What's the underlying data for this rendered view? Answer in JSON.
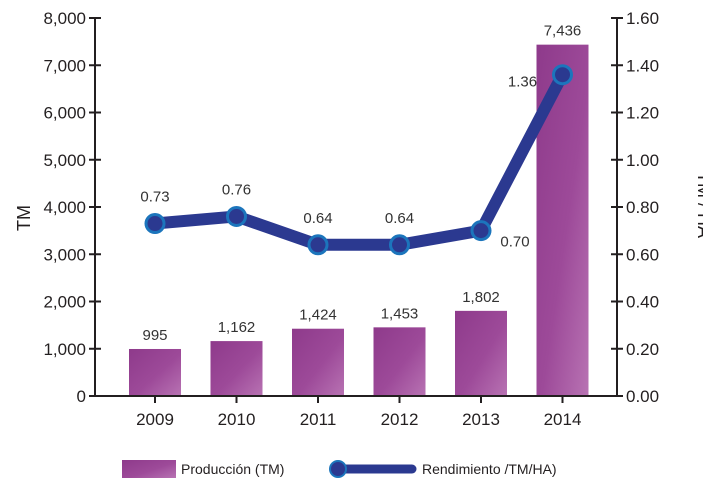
{
  "chart_data": {
    "type": "bar",
    "categories": [
      "2009",
      "2010",
      "2011",
      "2012",
      "2013",
      "2014"
    ],
    "series": [
      {
        "name": "Producción (TM)",
        "type": "bar",
        "axis": "left",
        "values": [
          995,
          1162,
          1424,
          1453,
          1802,
          7436
        ],
        "labels": [
          "995",
          "1,162",
          "1,424",
          "1,453",
          "1,802",
          "7,436"
        ],
        "color": "#9b3f96"
      },
      {
        "name": "Rendimiento /TM/HA)",
        "type": "line",
        "axis": "right",
        "values": [
          0.73,
          0.76,
          0.64,
          0.64,
          0.7,
          1.36
        ],
        "labels": [
          "0.73",
          "0.76",
          "0.64",
          "0.64",
          "0.70",
          "1.36"
        ],
        "color": "#2b3990"
      }
    ],
    "ylabel": "TM",
    "y2label": "TM / HA",
    "ylim": [
      0,
      8000
    ],
    "y2lim": [
      0,
      1.6
    ],
    "yticks": [
      "0",
      "1,000",
      "2,000",
      "3,000",
      "4,000",
      "5,000",
      "6,000",
      "7,000",
      "8,000"
    ],
    "y2ticks": [
      "0.00",
      "0.20",
      "0.40",
      "0.60",
      "0.80",
      "1.00",
      "1.20",
      "1.40",
      "1.60"
    ],
    "grid": false,
    "legend_position": "bottom"
  }
}
